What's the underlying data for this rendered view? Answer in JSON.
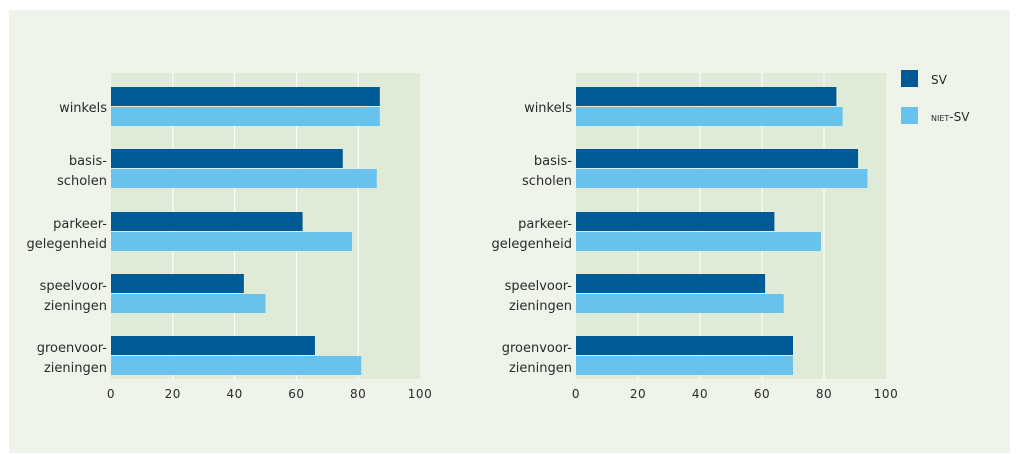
{
  "colors": {
    "sv": "#005a96",
    "niet_sv": "#67c3ee",
    "plot_bg": "#dfebd6",
    "figure_bg": "#eff4eb",
    "grid": "#ffffff"
  },
  "legend": {
    "sv": "SV",
    "niet_sv": "niet-SV"
  },
  "chart_data": [
    {
      "type": "bar",
      "orientation": "horizontal",
      "categories": [
        [
          "winkels"
        ],
        [
          "basis-",
          "scholen"
        ],
        [
          "parkeer-",
          "gelegenheid"
        ],
        [
          "speelvoor-",
          "zieningen"
        ],
        [
          "groenvoor-",
          "zieningen"
        ]
      ],
      "series": [
        {
          "name": "SV",
          "values": [
            87,
            75,
            62,
            43,
            66
          ]
        },
        {
          "name": "niet-SV",
          "values": [
            87,
            86,
            78,
            50,
            81
          ]
        }
      ],
      "xlim": [
        0,
        100
      ],
      "xticks": [
        "0",
        "20",
        "40",
        "60",
        "80",
        "100"
      ],
      "grid": true,
      "legend": "none"
    },
    {
      "type": "bar",
      "orientation": "horizontal",
      "categories": [
        [
          "winkels"
        ],
        [
          "basis-",
          "scholen"
        ],
        [
          "parkeer-",
          "gelegenheid"
        ],
        [
          "speelvoor-",
          "zieningen"
        ],
        [
          "groenvoor-",
          "zieningen"
        ]
      ],
      "series": [
        {
          "name": "SV",
          "values": [
            84,
            91,
            64,
            61,
            70
          ]
        },
        {
          "name": "niet-SV",
          "values": [
            86,
            94,
            79,
            67,
            70
          ]
        }
      ],
      "xlim": [
        0,
        100
      ],
      "xticks": [
        "0",
        "20",
        "40",
        "60",
        "80",
        "100"
      ],
      "grid": true,
      "legend": "right"
    }
  ]
}
